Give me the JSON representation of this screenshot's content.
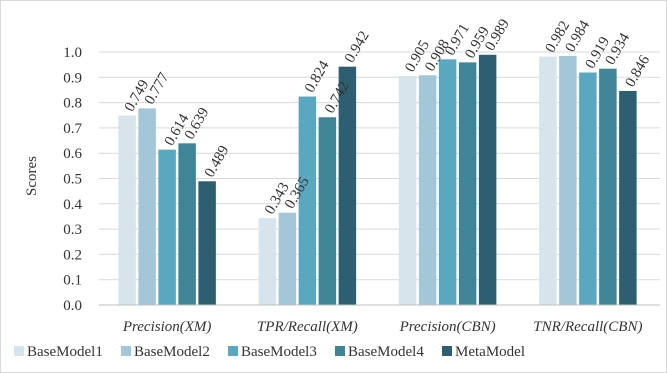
{
  "chart_data": {
    "type": "bar",
    "title": "",
    "xlabel": "",
    "ylabel": "Scores",
    "ylim": [
      0,
      1.0
    ],
    "yticks": [
      "0.0",
      "0.1",
      "0.2",
      "0.3",
      "0.4",
      "0.5",
      "0.6",
      "0.7",
      "0.8",
      "0.9",
      "1.0"
    ],
    "grid": true,
    "legend_position": "bottom",
    "categories": [
      "Precision(XM)",
      "TPR/Recall(XM)",
      "Precision(CBN)",
      "TNR/Recall(CBN)"
    ],
    "series": [
      {
        "name": "BaseModel1",
        "color": "#d6e4ec",
        "values": [
          0.749,
          0.343,
          0.905,
          0.982
        ],
        "labels": [
          "0.749",
          "0.343",
          "0.905",
          "0.982"
        ]
      },
      {
        "name": "BaseModel2",
        "color": "#a3c6d8",
        "values": [
          0.777,
          0.365,
          0.908,
          0.984
        ],
        "labels": [
          "0.777",
          "0.365",
          "0.908",
          "0.984"
        ]
      },
      {
        "name": "BaseModel3",
        "color": "#5aa7c0",
        "values": [
          0.614,
          0.824,
          0.971,
          0.919
        ],
        "labels": [
          "0.614",
          "0.824",
          "0.971",
          "0.919"
        ]
      },
      {
        "name": "BaseModel4",
        "color": "#3f8497",
        "values": [
          0.639,
          0.742,
          0.959,
          0.934
        ],
        "labels": [
          "0.639",
          "0.742",
          "0.959",
          "0.934"
        ]
      },
      {
        "name": "MetaModel",
        "color": "#2e5f70",
        "values": [
          0.489,
          0.942,
          0.989,
          0.846
        ],
        "labels": [
          "0.489",
          "0.942",
          "0.989",
          "0.846"
        ]
      }
    ]
  }
}
